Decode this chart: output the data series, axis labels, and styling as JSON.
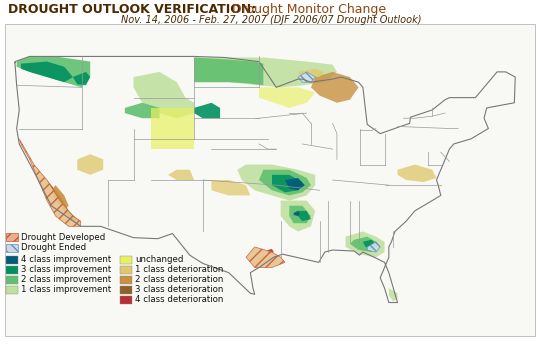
{
  "title1": "DROUGHT OUTLOOK VERIFICATION:",
  "title2": "Drought Monitor Change",
  "subtitle": "Nov. 14, 2006 - Feb. 27, 2007 (DJF 2006/07 Drought Outlook)",
  "title1_color": "#4a2800",
  "title2_color": "#8B4513",
  "subtitle_color": "#4a2800",
  "bg_color": "#ffffff",
  "legend": {
    "drought_developed_color": "#e07050",
    "drought_ended_color": "#a0b8d0",
    "class4_imp": "#005a7a",
    "class3_imp": "#009060",
    "class2_imp": "#60c070",
    "class1_imp": "#c0e0a0",
    "unchanged": "#e8f060",
    "class1_det": "#e0c870",
    "class2_det": "#c89040",
    "class3_det": "#906028",
    "class4_det": "#b83030"
  }
}
